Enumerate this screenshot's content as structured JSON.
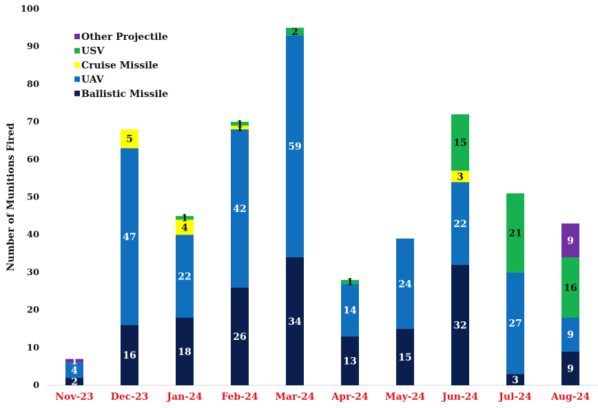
{
  "chart_data": {
    "type": "bar",
    "stacked": true,
    "title": "",
    "xlabel": "",
    "ylabel": "Number of Munitions Fired",
    "ylim": [
      0,
      100
    ],
    "yticks": [
      0,
      10,
      20,
      30,
      40,
      50,
      60,
      70,
      80,
      90,
      100
    ],
    "grid": false,
    "legend_position": "top-left",
    "categories": [
      "Nov-23",
      "Dec-23",
      "Jan-24",
      "Feb-24",
      "Mar-24",
      "Apr-24",
      "May-24",
      "Jun-24",
      "Jul-24",
      "Aug-24"
    ],
    "series": [
      {
        "name": "Ballistic Missile",
        "color": "#0b1f4f",
        "label_color": "#ffffff",
        "values": [
          2,
          16,
          18,
          26,
          34,
          13,
          15,
          32,
          3,
          9
        ]
      },
      {
        "name": "UAV",
        "color": "#1070bd",
        "label_color": "#ffffff",
        "values": [
          4,
          47,
          22,
          42,
          59,
          14,
          24,
          22,
          27,
          9
        ]
      },
      {
        "name": "Cruise Missile",
        "color": "#ffff00",
        "label_color": "#111111",
        "values": [
          0,
          5,
          4,
          1,
          0,
          0,
          0,
          3,
          0,
          0
        ]
      },
      {
        "name": "USV",
        "color": "#16b24f",
        "label_color": "#111111",
        "values": [
          0,
          0,
          1,
          1,
          2,
          1,
          0,
          15,
          21,
          16
        ]
      },
      {
        "name": "Other Projectile",
        "color": "#7030a0",
        "label_color": "#ffffff",
        "values": [
          1,
          0,
          0,
          0,
          0,
          0,
          0,
          0,
          0,
          9
        ]
      }
    ],
    "category_label_color": "#e8141c"
  }
}
